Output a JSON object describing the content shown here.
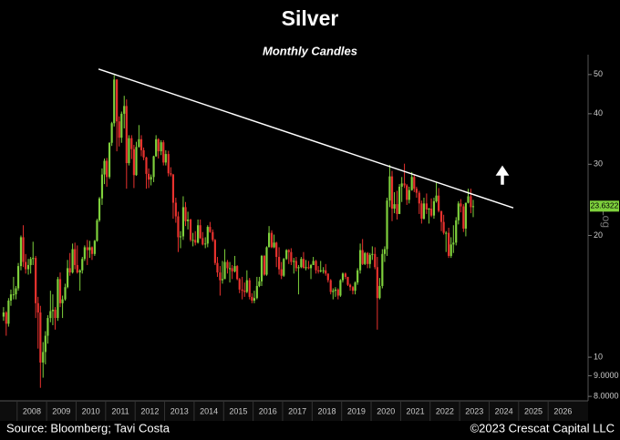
{
  "chart_data": {
    "type": "candlestick",
    "title": "Silver",
    "subtitle": "Monthly Candles",
    "source": "Source: Bloomberg; Tavi Costa",
    "copyright": "©2023 Crescat Capital LLC",
    "scale_label": "Log",
    "log_scale": true,
    "up_color": "#7ed03c",
    "down_color": "#e8322e",
    "xlim": [
      2007.42,
      2027.2
    ],
    "xticks": [
      2008,
      2009,
      2010,
      2011,
      2012,
      2013,
      2014,
      2015,
      2016,
      2017,
      2018,
      2019,
      2020,
      2021,
      2022,
      2023,
      2024,
      2025,
      2026
    ],
    "ylim": [
      7.8,
      56
    ],
    "yticks": [
      {
        "value": 8,
        "label": "8.0000"
      },
      {
        "value": 9,
        "label": "9.0000"
      },
      10,
      20,
      30,
      40,
      50
    ],
    "trendline": {
      "x": [
        2010.76,
        2024.82
      ],
      "y": [
        51.6,
        23.4
      ],
      "color": "#ffffff"
    },
    "x": [
      2007.54,
      2007.63,
      2007.71,
      2007.79,
      2007.88,
      2007.96,
      2008.04,
      2008.13,
      2008.21,
      2008.29,
      2008.38,
      2008.46,
      2008.54,
      2008.63,
      2008.71,
      2008.79,
      2008.88,
      2008.96,
      2009.04,
      2009.13,
      2009.21,
      2009.29,
      2009.38,
      2009.46,
      2009.54,
      2009.63,
      2009.71,
      2009.79,
      2009.88,
      2009.96,
      2010.04,
      2010.13,
      2010.21,
      2010.29,
      2010.38,
      2010.46,
      2010.54,
      2010.63,
      2010.71,
      2010.79,
      2010.88,
      2010.96,
      2011.04,
      2011.13,
      2011.21,
      2011.29,
      2011.38,
      2011.46,
      2011.54,
      2011.63,
      2011.71,
      2011.79,
      2011.88,
      2011.96,
      2012.04,
      2012.13,
      2012.21,
      2012.29,
      2012.38,
      2012.46,
      2012.54,
      2012.63,
      2012.71,
      2012.79,
      2012.88,
      2012.96,
      2013.04,
      2013.13,
      2013.21,
      2013.29,
      2013.38,
      2013.46,
      2013.54,
      2013.63,
      2013.71,
      2013.79,
      2013.88,
      2013.96,
      2014.04,
      2014.13,
      2014.21,
      2014.29,
      2014.38,
      2014.46,
      2014.54,
      2014.63,
      2014.71,
      2014.79,
      2014.88,
      2014.96,
      2015.04,
      2015.13,
      2015.21,
      2015.29,
      2015.38,
      2015.46,
      2015.54,
      2015.63,
      2015.71,
      2015.79,
      2015.88,
      2015.96,
      2016.04,
      2016.13,
      2016.21,
      2016.29,
      2016.38,
      2016.46,
      2016.54,
      2016.63,
      2016.71,
      2016.79,
      2016.88,
      2016.96,
      2017.04,
      2017.13,
      2017.21,
      2017.29,
      2017.38,
      2017.46,
      2017.54,
      2017.63,
      2017.71,
      2017.79,
      2017.88,
      2017.96,
      2018.04,
      2018.13,
      2018.21,
      2018.29,
      2018.38,
      2018.46,
      2018.54,
      2018.63,
      2018.71,
      2018.79,
      2018.88,
      2018.96,
      2019.04,
      2019.13,
      2019.21,
      2019.29,
      2019.38,
      2019.46,
      2019.54,
      2019.63,
      2019.71,
      2019.79,
      2019.88,
      2019.96,
      2020.04,
      2020.13,
      2020.21,
      2020.29,
      2020.38,
      2020.46,
      2020.54,
      2020.63,
      2020.71,
      2020.79,
      2020.88,
      2020.96,
      2021.04,
      2021.13,
      2021.21,
      2021.29,
      2021.38,
      2021.46,
      2021.54,
      2021.63,
      2021.71,
      2021.79,
      2021.88,
      2021.96,
      2022.04,
      2022.13,
      2022.21,
      2022.29,
      2022.38,
      2022.46,
      2022.54,
      2022.63,
      2022.71,
      2022.79,
      2022.88,
      2022.96,
      2023.04,
      2023.13,
      2023.21,
      2023.29,
      2023.38,
      2023.46
    ],
    "open": [
      12.6,
      12.9,
      12.1,
      13.8,
      14.3,
      14.3,
      14.8,
      16.8,
      19.8,
      17.2,
      16.5,
      16.9,
      17.5,
      17.6,
      13.6,
      12.9,
      9.7,
      10.3,
      11.3,
      12.5,
      13.0,
      13.1,
      12.5,
      15.6,
      13.6,
      13.9,
      14.9,
      16.6,
      16.2,
      18.5,
      16.9,
      16.2,
      16.4,
      17.5,
      18.7,
      18.4,
      18.7,
      18.0,
      19.4,
      21.8,
      24.7,
      28.3,
      30.6,
      27.9,
      33.9,
      37.9,
      48.6,
      38.3,
      34.9,
      40.0,
      41.8,
      30.2,
      34.8,
      32.7,
      28.2,
      33.1,
      34.6,
      32.5,
      31.2,
      28.4,
      27.5,
      27.9,
      31.4,
      34.6,
      32.3,
      34.0,
      30.3,
      31.8,
      28.5,
      28.3,
      24.1,
      22.3,
      19.8,
      19.9,
      23.5,
      21.7,
      21.9,
      19.5,
      19.5,
      19.2,
      21.2,
      19.7,
      19.0,
      19.1,
      21.0,
      20.4,
      19.5,
      17.1,
      16.2,
      15.5,
      15.6,
      17.2,
      16.6,
      16.6,
      16.3,
      16.8,
      15.6,
      14.7,
      14.6,
      14.5,
      15.5,
      14.1,
      13.8,
      14.0,
      15.0,
      15.4,
      17.8,
      16.0,
      18.7,
      20.3,
      18.7,
      19.2,
      17.7,
      16.5,
      15.9,
      17.5,
      18.4,
      18.2,
      17.2,
      17.3,
      16.6,
      16.7,
      17.5,
      16.6,
      16.7,
      16.6,
      16.9,
      17.3,
      16.4,
      16.3,
      16.4,
      16.4,
      16.1,
      15.5,
      14.5,
      14.6,
      14.7,
      14.2,
      15.5,
      16.1,
      15.8,
      15.1,
      14.9,
      14.6,
      15.3,
      16.4,
      18.4,
      17.0,
      18.1,
      17.0,
      17.9,
      18.0,
      16.7,
      14.0,
      15.0,
      18.0,
      18.5,
      24.4,
      28.0,
      23.3,
      23.9,
      22.6,
      26.4,
      26.9,
      26.6,
      24.5,
      25.9,
      27.9,
      26.1,
      25.5,
      24.0,
      22.0,
      24.0,
      23.2,
      23.3,
      22.4,
      24.3,
      25.1,
      23.0,
      21.6,
      20.3,
      20.3,
      17.8,
      19.0,
      19.2,
      21.8,
      24.0,
      23.6,
      20.8,
      24.1,
      25.0,
      23.5
    ],
    "high": [
      13.3,
      13.0,
      14.0,
      14.7,
      15.8,
      15.0,
      17.1,
      20.0,
      21.2,
      18.0,
      17.5,
      17.7,
      19.3,
      17.8,
      14.1,
      13.4,
      10.9,
      11.6,
      12.7,
      14.6,
      14.3,
      13.3,
      15.8,
      16.2,
      14.2,
      15.2,
      17.4,
      18.1,
      19.1,
      19.2,
      18.9,
      16.5,
      17.7,
      18.9,
      19.5,
      19.4,
      18.8,
      19.5,
      22.0,
      24.9,
      29.3,
      31.0,
      31.1,
      34.0,
      38.2,
      49.8,
      48.7,
      39.4,
      40.5,
      44.3,
      43.4,
      35.4,
      35.4,
      33.5,
      34.1,
      37.5,
      35.4,
      33.0,
      31.3,
      29.3,
      28.3,
      31.5,
      35.4,
      34.8,
      34.4,
      34.4,
      32.5,
      32.4,
      29.5,
      28.4,
      24.8,
      22.9,
      20.5,
      25.0,
      24.2,
      22.9,
      22.0,
      20.3,
      20.5,
      21.9,
      21.9,
      20.4,
      19.8,
      21.2,
      21.6,
      20.7,
      19.6,
      17.7,
      16.8,
      17.3,
      18.5,
      17.4,
      17.2,
      16.9,
      17.8,
      16.9,
      15.7,
      15.8,
      15.3,
      16.4,
      15.7,
      14.4,
      14.6,
      15.8,
      15.8,
      17.9,
      17.9,
      18.8,
      21.1,
      20.6,
      20.1,
      19.3,
      18.7,
      17.2,
      17.6,
      18.5,
      18.5,
      18.6,
      17.6,
      17.7,
      16.9,
      17.7,
      18.2,
      17.4,
      17.3,
      17.0,
      17.7,
      17.4,
      16.8,
      17.3,
      16.7,
      17.0,
      16.1,
      15.6,
      14.8,
      14.9,
      14.8,
      15.6,
      16.2,
      16.2,
      15.8,
      15.2,
      15.0,
      15.4,
      16.6,
      19.1,
      19.6,
      18.2,
      18.2,
      18.1,
      18.8,
      18.7,
      17.7,
      15.7,
      18.5,
      18.8,
      24.8,
      29.9,
      28.9,
      25.6,
      25.8,
      26.8,
      27.9,
      30.1,
      26.8,
      26.4,
      28.7,
      28.3,
      26.4,
      25.8,
      24.4,
      24.8,
      25.4,
      23.4,
      24.7,
      24.8,
      27.0,
      26.2,
      23.0,
      22.5,
      20.5,
      20.9,
      19.8,
      21.2,
      22.2,
      24.3,
      24.6,
      23.9,
      24.1,
      26.1,
      26.1,
      24.5
    ],
    "low": [
      12.3,
      11.3,
      11.9,
      13.4,
      13.9,
      13.9,
      14.6,
      16.4,
      16.7,
      16.1,
      16.0,
      16.1,
      16.9,
      12.5,
      10.5,
      8.4,
      8.9,
      9.6,
      10.8,
      12.2,
      12.0,
      11.7,
      12.3,
      13.3,
      12.5,
      13.8,
      14.8,
      15.9,
      16.1,
      16.5,
      16.1,
      14.6,
      16.1,
      17.3,
      16.9,
      17.6,
      17.4,
      17.8,
      19.3,
      21.6,
      23.8,
      26.8,
      26.4,
      27.6,
      33.3,
      37.2,
      32.3,
      33.2,
      33.9,
      36.8,
      26.1,
      29.8,
      30.9,
      26.2,
      28.1,
      33.0,
      31.4,
      30.7,
      26.1,
      26.2,
      26.6,
      27.1,
      31.3,
      31.0,
      31.6,
      29.8,
      29.8,
      28.0,
      28.0,
      22.0,
      21.5,
      18.2,
      18.6,
      19.5,
      21.1,
      20.7,
      19.3,
      18.8,
      18.9,
      19.1,
      19.6,
      18.9,
      18.6,
      18.7,
      20.3,
      19.3,
      16.9,
      15.8,
      14.2,
      15.2,
      15.6,
      16.1,
      15.3,
      15.6,
      16.2,
      15.5,
      14.4,
      13.9,
      14.1,
      14.4,
      13.9,
      13.6,
      13.6,
      13.9,
      14.9,
      15.0,
      15.9,
      15.9,
      18.7,
      18.6,
      18.6,
      16.7,
      16.0,
      15.6,
      15.8,
      17.4,
      17.0,
      16.9,
      16.1,
      16.3,
      14.3,
      16.6,
      16.6,
      16.4,
      16.5,
      15.6,
      16.9,
      16.1,
      16.1,
      16.2,
      16.1,
      15.9,
      15.3,
      14.3,
      13.9,
      14.1,
      13.9,
      14.1,
      15.3,
      15.6,
      15.0,
      14.6,
      14.3,
      14.3,
      15.1,
      16.1,
      16.9,
      16.9,
      16.6,
      16.6,
      17.4,
      16.5,
      11.7,
      13.9,
      14.8,
      17.2,
      17.8,
      23.5,
      21.7,
      22.7,
      21.9,
      22.6,
      24.2,
      26.2,
      23.8,
      24.0,
      25.8,
      25.6,
      24.8,
      22.6,
      21.4,
      21.9,
      22.6,
      21.4,
      22.2,
      22.0,
      24.1,
      22.8,
      20.5,
      20.1,
      18.2,
      17.6,
      17.6,
      18.1,
      18.9,
      21.3,
      22.8,
      20.4,
      19.9,
      24.0,
      22.7,
      22.2
    ],
    "close": [
      12.9,
      12.1,
      13.8,
      14.3,
      14.3,
      14.8,
      16.8,
      19.8,
      17.2,
      16.5,
      16.9,
      17.5,
      17.6,
      13.6,
      12.9,
      9.7,
      10.3,
      11.3,
      12.5,
      13.0,
      13.1,
      12.5,
      15.6,
      13.6,
      13.9,
      14.9,
      16.6,
      16.2,
      18.5,
      16.9,
      16.2,
      16.4,
      17.5,
      18.7,
      18.4,
      18.7,
      18.0,
      19.4,
      21.8,
      24.7,
      28.3,
      30.6,
      27.9,
      33.9,
      37.9,
      48.6,
      38.3,
      34.9,
      40.0,
      41.8,
      30.2,
      34.8,
      32.7,
      28.2,
      33.1,
      34.6,
      32.5,
      31.2,
      28.4,
      27.5,
      27.9,
      31.4,
      34.6,
      32.3,
      34.0,
      30.3,
      31.8,
      28.5,
      28.3,
      24.1,
      22.3,
      19.8,
      19.9,
      23.5,
      21.7,
      21.9,
      19.5,
      19.5,
      19.2,
      21.2,
      19.7,
      19.0,
      19.1,
      21.0,
      20.4,
      19.5,
      17.1,
      16.2,
      15.5,
      15.6,
      17.2,
      16.6,
      16.6,
      16.3,
      16.8,
      15.6,
      14.7,
      14.6,
      14.5,
      15.5,
      14.1,
      13.8,
      14.0,
      15.0,
      15.4,
      17.8,
      16.0,
      18.7,
      20.3,
      18.7,
      19.2,
      17.7,
      16.5,
      15.9,
      17.5,
      18.4,
      18.2,
      17.2,
      17.3,
      16.6,
      16.7,
      17.5,
      16.6,
      16.7,
      16.6,
      16.9,
      17.3,
      16.4,
      16.3,
      16.4,
      16.4,
      16.1,
      15.5,
      14.5,
      14.6,
      14.7,
      14.2,
      15.5,
      16.1,
      15.8,
      15.1,
      14.9,
      14.6,
      15.3,
      16.4,
      18.4,
      17.0,
      18.1,
      17.0,
      17.9,
      18.0,
      16.7,
      14.0,
      15.0,
      18.0,
      18.5,
      24.4,
      28.0,
      23.3,
      23.9,
      22.6,
      26.4,
      26.9,
      26.6,
      24.5,
      25.9,
      27.9,
      26.1,
      25.5,
      24.0,
      22.0,
      24.0,
      23.2,
      23.3,
      22.4,
      24.3,
      25.1,
      23.0,
      21.6,
      20.3,
      20.3,
      17.8,
      19.0,
      19.2,
      21.8,
      24.0,
      23.6,
      20.8,
      24.1,
      25.0,
      23.5,
      23.6322
    ]
  }
}
